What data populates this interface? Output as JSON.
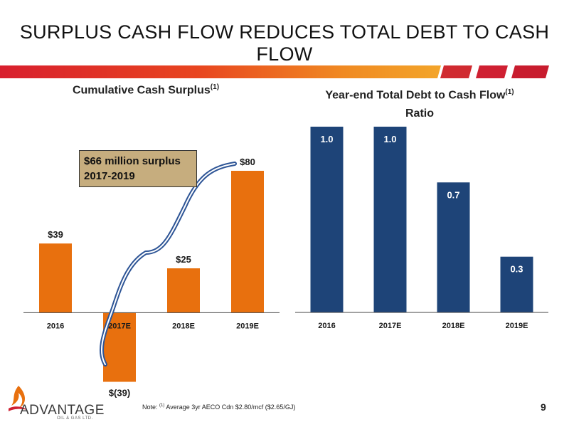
{
  "slide": {
    "title": "SURPLUS CASH FLOW REDUCES TOTAL DEBT TO CASH FLOW",
    "page_number": "9",
    "note_prefix": "Note:",
    "note_marker": "(1)",
    "note_text": "Average 3yr AECO Cdn $2.80/mcf ($2.65/GJ)",
    "logo_text": "ADVANTAGE",
    "logo_sub": "OIL & GAS LTD."
  },
  "colors": {
    "orange": "#e8700e",
    "navy": "#1e4478",
    "red": "#cf2032",
    "callout": "#c6ad7e",
    "brace": "#2e5596"
  },
  "callout": {
    "line1": "$66 million surplus",
    "line2": "2017-2019"
  },
  "chart_data": [
    {
      "type": "bar",
      "title": "Cumulative Cash Surplus",
      "title_marker": "(1)",
      "categories": [
        "2016",
        "2017E",
        "2018E",
        "2019E"
      ],
      "values": [
        39,
        -39,
        25,
        80
      ],
      "data_labels": [
        "$39",
        "$(39)",
        "$25",
        "$80"
      ],
      "ylim": [
        -40,
        80
      ],
      "color": "#e8700e",
      "grid": false
    },
    {
      "type": "bar",
      "title": "Year-end Total Debt to Cash Flow",
      "title_marker": "(1)",
      "title_line2": "Ratio",
      "categories": [
        "2016",
        "2017E",
        "2018E",
        "2019E"
      ],
      "values": [
        1.0,
        1.0,
        0.7,
        0.3
      ],
      "data_labels": [
        "1.0",
        "1.0",
        "0.7",
        "0.3"
      ],
      "ylim": [
        0,
        1.0
      ],
      "color": "#1e4478",
      "grid": false
    }
  ]
}
